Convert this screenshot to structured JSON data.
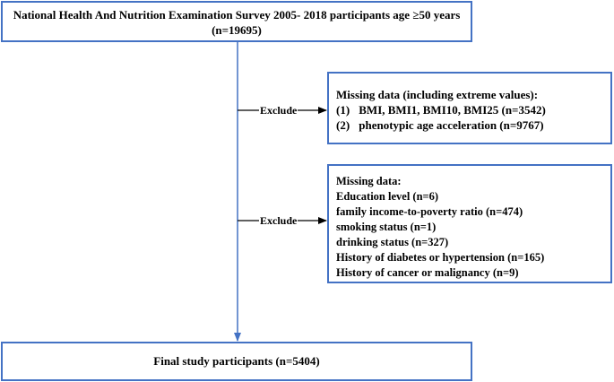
{
  "top_box": {
    "line1": "National Health And Nutrition Examination Survey 2005- 2018 participants age ≥50 years",
    "line2": "(n=19695)"
  },
  "exclusion_1": {
    "label": "Exclude",
    "title": "Missing data (including extreme values):",
    "items": [
      {
        "num": "(1)",
        "text": "BMI, BMI1, BMI10, BMI25 (n=3542)"
      },
      {
        "num": "(2)",
        "text": "phenotypic age acceleration (n=9767)"
      }
    ]
  },
  "exclusion_2": {
    "label": "Exclude",
    "title": "Missing data:",
    "items": [
      "Education level (n=6)",
      "family income-to-poverty ratio (n=474)",
      "smoking status (n=1)",
      "drinking status (n=327)",
      "History of diabetes or hypertension (n=165)",
      "History of cancer or malignancy (n=9)"
    ]
  },
  "final_box": {
    "text": "Final study participants (n=5404)"
  },
  "colors": {
    "box_border": "#4472c4",
    "main_arrow": "#4472c4",
    "side_arrow": "#000000"
  }
}
